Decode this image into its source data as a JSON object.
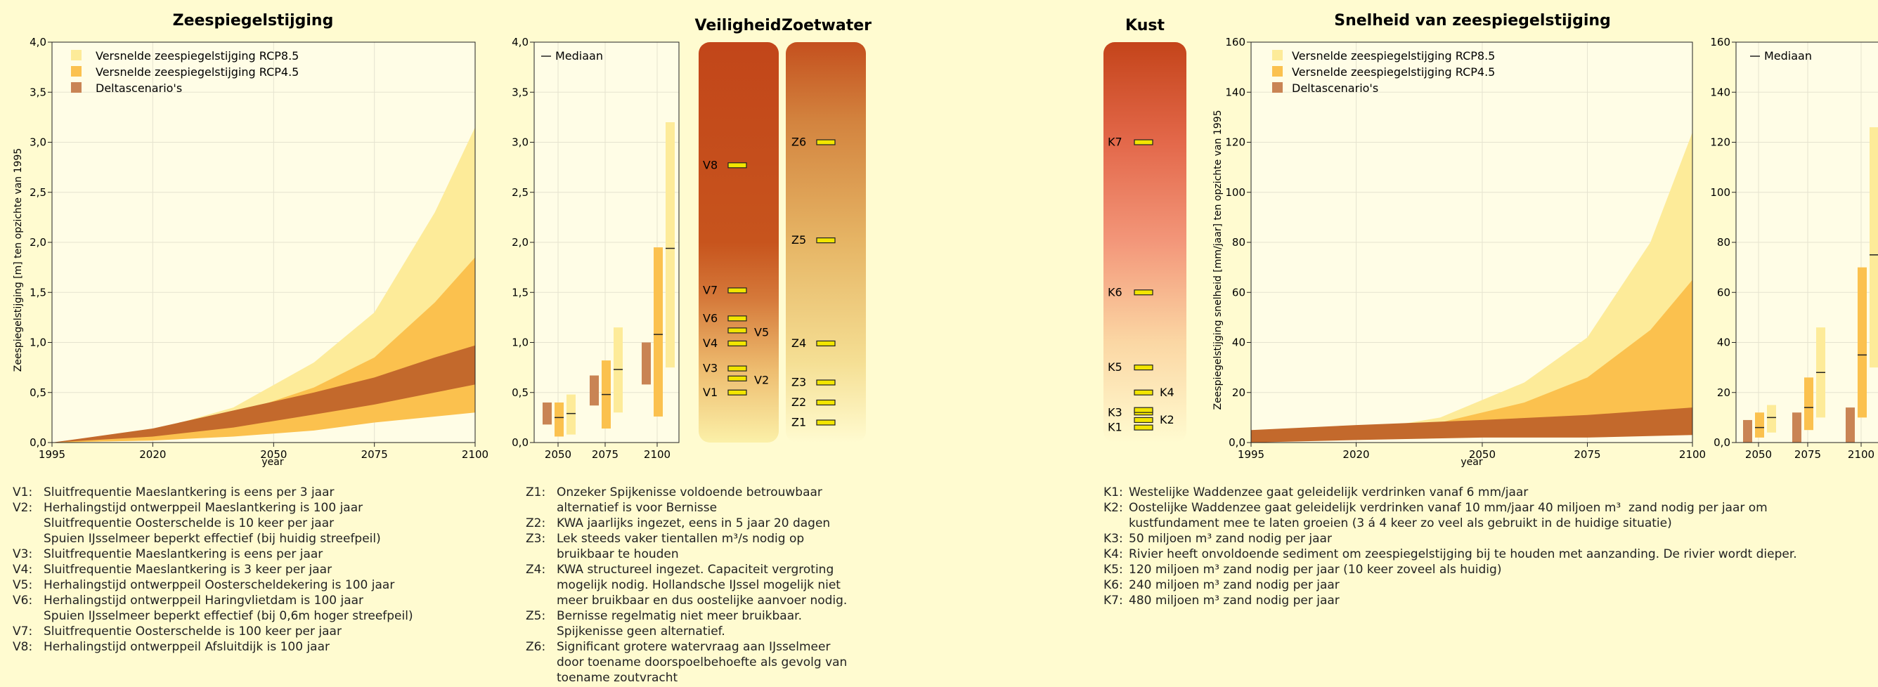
{
  "colors": {
    "bg": "#fffbd0",
    "rcp85": "#fdeb99",
    "rcp45": "#fbc14e",
    "delta": "#c3692c",
    "marker": "#f2e500"
  },
  "panels": {
    "zee_title": "Zeespiegelstijging",
    "snel_title": "Snelheid van zeespiegelstijging",
    "veiligheid_title": "Veiligheid",
    "zoetwater_title": "Zoetwater",
    "kust_title": "Kust"
  },
  "legend": {
    "rcp85": "Versnelde zeespiegelstijging RCP8.5",
    "rcp45": "Versnelde zeespiegelstijging RCP4.5",
    "delta": "Deltascenario's",
    "mediaan": "Mediaan"
  },
  "chart_data": [
    {
      "id": "zeespiegel",
      "type": "area",
      "title": "Zeespiegelstijging",
      "xlabel": "year",
      "ylabel": "Zeespiegelstijging [m] ten opzichte van 1995",
      "xlim": [
        1995,
        2100
      ],
      "ylim": [
        0,
        4
      ],
      "xticks": [
        "1995",
        "2020",
        "2050",
        "2075",
        "2100"
      ],
      "yticks": [
        "0,0",
        "0,5",
        "1,0",
        "1,5",
        "2,0",
        "2,5",
        "3,0",
        "3,5",
        "4,0"
      ],
      "grid": true,
      "legend_position": "top-left",
      "series": [
        {
          "name": "Versnelde zeespiegelstijging RCP8.5",
          "x": [
            1995,
            2020,
            2040,
            2060,
            2075,
            2090,
            2100
          ],
          "upper": [
            0,
            0.12,
            0.35,
            0.8,
            1.3,
            2.3,
            3.15
          ],
          "lower": [
            0,
            0.02,
            0.08,
            0.2,
            0.4,
            0.65,
            0.85
          ]
        },
        {
          "name": "Versnelde zeespiegelstijging RCP4.5",
          "x": [
            1995,
            2020,
            2040,
            2060,
            2075,
            2090,
            2100
          ],
          "upper": [
            0,
            0.1,
            0.28,
            0.55,
            0.85,
            1.4,
            1.85
          ],
          "lower": [
            0,
            0.02,
            0.06,
            0.12,
            0.2,
            0.26,
            0.3
          ]
        },
        {
          "name": "Deltascenario's",
          "x": [
            1995,
            2020,
            2040,
            2060,
            2075,
            2090,
            2100
          ],
          "upper": [
            0,
            0.14,
            0.32,
            0.5,
            0.65,
            0.85,
            0.97
          ],
          "lower": [
            0,
            0.06,
            0.15,
            0.28,
            0.38,
            0.5,
            0.58
          ]
        }
      ]
    },
    {
      "id": "zeespiegel_box",
      "type": "bar",
      "categories": [
        "2050",
        "2075",
        "2100"
      ],
      "ylim": [
        0,
        4
      ],
      "yticks": [
        "0,0",
        "0,5",
        "1,0",
        "1,5",
        "2,0",
        "2,5",
        "3,0",
        "3,5",
        "4,0"
      ],
      "series": [
        {
          "name": "Deltascenario's",
          "ranges": [
            [
              0.18,
              0.4
            ],
            [
              0.37,
              0.67
            ],
            [
              0.58,
              1.0
            ]
          ]
        },
        {
          "name": "Versnelde zeespiegelstijging RCP4.5",
          "ranges": [
            [
              0.06,
              0.4
            ],
            [
              0.14,
              0.82
            ],
            [
              0.26,
              1.95
            ]
          ],
          "median": [
            0.25,
            0.48,
            1.08
          ]
        },
        {
          "name": "Versnelde zeespiegelstijging RCP8.5",
          "ranges": [
            [
              0.08,
              0.48
            ],
            [
              0.3,
              1.15
            ],
            [
              0.75,
              3.2
            ]
          ],
          "median": [
            0.29,
            0.73,
            1.94
          ]
        }
      ]
    },
    {
      "id": "snelheid",
      "type": "area",
      "title": "Snelheid van zeespiegelstijging",
      "xlabel": "year",
      "ylabel": "Zeespiegelstijging  snelheid [mm/jaar] ten opzichte van 1995",
      "xlim": [
        1995,
        2100
      ],
      "ylim": [
        0,
        160
      ],
      "xticks": [
        "1995",
        "2020",
        "2050",
        "2075",
        "2100"
      ],
      "yticks": [
        "0,0",
        "20",
        "40",
        "60",
        "80",
        "100",
        "120",
        "140",
        "160"
      ],
      "grid": true,
      "legend_position": "top-left",
      "series": [
        {
          "name": "Versnelde zeespiegelstijging RCP8.5",
          "x": [
            2015,
            2040,
            2060,
            2075,
            2090,
            2100
          ],
          "upper": [
            3,
            10,
            24,
            42,
            80,
            124
          ],
          "lower": [
            2,
            3,
            4,
            5,
            6,
            7
          ]
        },
        {
          "name": "Versnelde zeespiegelstijging RCP4.5",
          "x": [
            2015,
            2040,
            2060,
            2075,
            2090,
            2100
          ],
          "upper": [
            3,
            8,
            16,
            26,
            45,
            65
          ],
          "lower": [
            2,
            3,
            4,
            5,
            6,
            7
          ]
        },
        {
          "name": "Deltascenario's",
          "x": [
            1995,
            2020,
            2050,
            2075,
            2100
          ],
          "upper": [
            5,
            7,
            9,
            11,
            14
          ],
          "lower": [
            0,
            1,
            2,
            2,
            3
          ]
        }
      ]
    },
    {
      "id": "snelheid_box",
      "type": "bar",
      "categories": [
        "2050",
        "2075",
        "2100"
      ],
      "ylim": [
        0,
        160
      ],
      "yticks": [
        "0,0",
        "20",
        "40",
        "60",
        "80",
        "100",
        "120",
        "140",
        "160"
      ],
      "series": [
        {
          "name": "Deltascenario's",
          "ranges": [
            [
              0,
              9
            ],
            [
              0,
              12
            ],
            [
              0,
              14
            ]
          ]
        },
        {
          "name": "Versnelde zeespiegelstijging RCP4.5",
          "ranges": [
            [
              2,
              12
            ],
            [
              5,
              26
            ],
            [
              10,
              70
            ]
          ],
          "median": [
            6,
            14,
            35
          ]
        },
        {
          "name": "Versnelde zeespiegelstijging RCP8.5",
          "ranges": [
            [
              4,
              15
            ],
            [
              10,
              46
            ],
            [
              30,
              126
            ]
          ],
          "median": [
            10,
            28,
            75
          ]
        }
      ]
    }
  ],
  "bars": {
    "veiligheid_ticks": [
      {
        "label": "V8",
        "value": 2.77
      },
      {
        "label": "V7",
        "value": 1.52
      },
      {
        "label": "V6",
        "value": 1.24
      },
      {
        "label": "V4",
        "value": 0.99
      },
      {
        "label": "V3",
        "value": 0.74
      },
      {
        "label": "V1",
        "value": 0.5
      }
    ],
    "veiligheid_right_ticks": [
      {
        "value": 1.12
      },
      {
        "value": 0.64
      }
    ],
    "veiligheid_right_labels": [
      {
        "label": "V5",
        "value": 1.1
      },
      {
        "label": "V2",
        "value": 0.62
      }
    ],
    "zoetwater_ticks": [
      {
        "label": "Z6",
        "value": 3.0
      },
      {
        "label": "Z5",
        "value": 2.02
      },
      {
        "label": "Z4",
        "value": 0.99
      },
      {
        "label": "Z3",
        "value": 0.6
      },
      {
        "label": "Z2",
        "value": 0.4
      },
      {
        "label": "Z1",
        "value": 0.2
      }
    ],
    "kust_ticks": [
      {
        "label": "K7",
        "value": 120
      },
      {
        "label": "K6",
        "value": 60
      },
      {
        "label": "K5",
        "value": 30
      },
      {
        "label": "K3",
        "value": 12
      },
      {
        "label": "K1",
        "value": 6
      }
    ],
    "kust_right_ticks": [
      {
        "label": "K4",
        "value": 20
      },
      {
        "label": "",
        "value": 13
      },
      {
        "label": "K2",
        "value": 9
      }
    ]
  },
  "notes": {
    "veiligheid": [
      {
        "code": "V1:",
        "text": "Sluitfrequentie Maeslantkering is eens per 3 jaar"
      },
      {
        "code": "V2:",
        "text": "Herhalingstijd ontwerppeil Maeslantkering is 100 jaar"
      },
      {
        "code": "",
        "text": "Sluitfrequentie Oosterschelde is 10 keer per jaar"
      },
      {
        "code": "",
        "text": "Spuien IJsselmeer beperkt effectief (bij huidig streefpeil)"
      },
      {
        "code": "V3:",
        "text": "Sluitfrequentie Maeslantkering is eens per jaar"
      },
      {
        "code": "V4:",
        "text": "Sluitfrequentie Maeslantkering is 3 keer per jaar"
      },
      {
        "code": "V5:",
        "text": "Herhalingstijd ontwerppeil Oosterscheldekering is 100 jaar"
      },
      {
        "code": "V6:",
        "text": "Herhalingstijd ontwerppeil Haringvlietdam is 100 jaar"
      },
      {
        "code": "",
        "text": "Spuien IJsselmeer beperkt effectief (bij 0,6m hoger streefpeil)"
      },
      {
        "code": "V7:",
        "text": "Sluitfrequentie Oosterschelde is 100 keer per jaar"
      },
      {
        "code": "V8:",
        "text": "Herhalingstijd ontwerppeil Afsluitdijk is 100 jaar"
      }
    ],
    "zoetwater": [
      {
        "code": "Z1:",
        "text": "Onzeker Spijkenisse voldoende betrouwbaar"
      },
      {
        "code": "",
        "text": "alternatief is voor Bernisse"
      },
      {
        "code": "Z2:",
        "text": "KWA jaarlijks ingezet, eens in 5 jaar 20 dagen"
      },
      {
        "code": "Z3:",
        "text": "Lek steeds vaker tientallen m³/s nodig op"
      },
      {
        "code": "",
        "text": "bruikbaar te houden"
      },
      {
        "code": "Z4:",
        "text": "KWA structureel ingezet. Capaciteit vergroting"
      },
      {
        "code": "",
        "text": "mogelijk nodig. Hollandsche IJssel mogelijk niet"
      },
      {
        "code": "",
        "text": "meer bruikbaar en dus oostelijke aanvoer nodig."
      },
      {
        "code": "Z5:",
        "text": "Bernisse regelmatig niet meer bruikbaar."
      },
      {
        "code": "",
        "text": "Spijkenisse geen alternatief."
      },
      {
        "code": "Z6:",
        "text": "Significant grotere watervraag aan IJsselmeer"
      },
      {
        "code": "",
        "text": "door toename doorspoelbehoefte als gevolg van"
      },
      {
        "code": "",
        "text": "toename zoutvracht"
      }
    ],
    "kust": [
      {
        "code": "K1:",
        "text": "Westelijke Waddenzee gaat geleidelijk verdrinken vanaf 6 mm/jaar"
      },
      {
        "code": "K2:",
        "text": "Oostelijke Waddenzee gaat geleidelijk verdrinken vanaf 10 mm/jaar 40 miljoen m³  zand nodig per jaar om"
      },
      {
        "code": "",
        "text": "kustfundament mee te laten groeien (3 á 4 keer zo veel als gebruikt in de huidige situatie)"
      },
      {
        "code": "K3:",
        "text": "50 miljoen m³ zand nodig per jaar"
      },
      {
        "code": "K4:",
        "text": "Rivier heeft onvoldoende sediment om zeespiegelstijging bij te houden met aanzanding. De rivier wordt dieper."
      },
      {
        "code": "K5:",
        "text": "120 miljoen m³ zand nodig per jaar (10 keer zoveel als huidig)"
      },
      {
        "code": "K6:",
        "text": "240 miljoen m³ zand nodig per jaar"
      },
      {
        "code": "K7:",
        "text": "480 miljoen m³ zand nodig per jaar"
      }
    ]
  }
}
